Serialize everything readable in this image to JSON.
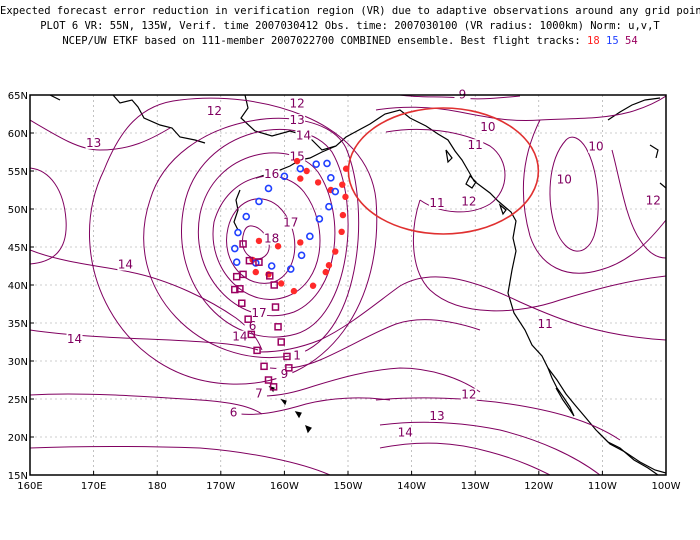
{
  "header": {
    "line1": "Expected forecast error reduction in verification region (VR) due to adaptive observations around any grid point.",
    "line2": "PLOT 6 VR: 55N, 135W, Verif. time 2007030412 Obs. time: 2007030100 (VR radius: 1000km) Norm: u,v,T",
    "line3_prefix": "NCEP/UW ETKF based on 111-member 2007022700 COMBINED ensemble.  Best flight tracks:",
    "track1": "18",
    "track2": "15",
    "track3": "54"
  },
  "map": {
    "lat_labels": [
      "65N",
      "60N",
      "55N",
      "50N",
      "45N",
      "40N",
      "35N",
      "30N",
      "25N",
      "20N",
      "15N"
    ],
    "lon_labels": [
      "160E",
      "170E",
      "180",
      "170W",
      "160W",
      "150W",
      "140W",
      "130W",
      "120W",
      "110W",
      "100W"
    ],
    "contour_labels": [
      {
        "text": "12",
        "lon": -171,
        "lat": 62.5
      },
      {
        "text": "12",
        "lon": -158,
        "lat": 63.5
      },
      {
        "text": "13",
        "lon": -158,
        "lat": 61.3
      },
      {
        "text": "14",
        "lon": -157,
        "lat": 59.3
      },
      {
        "text": "13",
        "lon": -190,
        "lat": 58.3
      },
      {
        "text": "15",
        "lon": -158,
        "lat": 56.5
      },
      {
        "text": "16",
        "lon": -162,
        "lat": 54.2
      },
      {
        "text": "17",
        "lon": -159,
        "lat": 47.8
      },
      {
        "text": "18",
        "lon": -162,
        "lat": 45.7
      },
      {
        "text": "14",
        "lon": -185,
        "lat": 42.3
      },
      {
        "text": "17",
        "lon": -164,
        "lat": 35.9
      },
      {
        "text": "6",
        "lon": -165,
        "lat": 34.2
      },
      {
        "text": "14",
        "lon": -167,
        "lat": 32.8
      },
      {
        "text": "1",
        "lon": -158,
        "lat": 30.3
      },
      {
        "text": "14",
        "lon": -193,
        "lat": 32.5
      },
      {
        "text": "9",
        "lon": -160,
        "lat": 27.9
      },
      {
        "text": "7",
        "lon": -164,
        "lat": 25.3
      },
      {
        "text": "6",
        "lon": -168,
        "lat": 22.8
      },
      {
        "text": "9",
        "lon": -132,
        "lat": 64.7
      },
      {
        "text": "10",
        "lon": -128,
        "lat": 60.4
      },
      {
        "text": "11",
        "lon": -130,
        "lat": 58.0
      },
      {
        "text": "12",
        "lon": -131,
        "lat": 50.6
      },
      {
        "text": "11",
        "lon": -136,
        "lat": 50.4
      },
      {
        "text": "10",
        "lon": -111,
        "lat": 57.8
      },
      {
        "text": "10",
        "lon": -116,
        "lat": 53.5
      },
      {
        "text": "12",
        "lon": -102,
        "lat": 50.7
      },
      {
        "text": "11",
        "lon": -119,
        "lat": 34.5
      },
      {
        "text": "12",
        "lon": -131,
        "lat": 25.2
      },
      {
        "text": "13",
        "lon": -136,
        "lat": 22.4
      },
      {
        "text": "14",
        "lon": -141,
        "lat": 20.2
      }
    ],
    "verification_circle": {
      "lon": -135,
      "lat": 55
    },
    "track_18": [
      [
        -150.3,
        55.3
      ],
      [
        -150.9,
        53.2
      ],
      [
        -150.4,
        51.6
      ],
      [
        -150.8,
        49.2
      ],
      [
        -151,
        47.0
      ],
      [
        -152,
        44.4
      ],
      [
        -153.5,
        41.7
      ],
      [
        -155.5,
        39.9
      ],
      [
        -158.5,
        39.2
      ],
      [
        -160.5,
        40.2
      ],
      [
        -162.5,
        41.4
      ],
      [
        -164.5,
        41.7
      ],
      [
        -165,
        43.3
      ],
      [
        -164,
        45.8
      ],
      [
        -161,
        45.1
      ],
      [
        -157.5,
        45.6
      ],
      [
        -153,
        42.6
      ],
      [
        -152.7,
        52.5
      ],
      [
        -154.7,
        53.5
      ],
      [
        -157.5,
        54.0
      ],
      [
        -156.5,
        55.0
      ],
      [
        -158.0,
        56.3
      ]
    ],
    "track_15": [
      [
        -153.3,
        56.0
      ],
      [
        -152.7,
        54.1
      ],
      [
        -152.0,
        52.3
      ],
      [
        -153.0,
        50.3
      ],
      [
        -154.5,
        48.7
      ],
      [
        -156.0,
        46.4
      ],
      [
        -157.3,
        43.9
      ],
      [
        -159.0,
        42.1
      ],
      [
        -162.0,
        42.5
      ],
      [
        -164.5,
        42.9
      ],
      [
        -167.5,
        43.0
      ],
      [
        -167.8,
        44.8
      ],
      [
        -167.3,
        46.9
      ],
      [
        -166.0,
        49.0
      ],
      [
        -164.0,
        51.0
      ],
      [
        -162.5,
        52.7
      ],
      [
        -160.0,
        54.3
      ],
      [
        -157.5,
        55.3
      ],
      [
        -155.0,
        55.9
      ]
    ],
    "track_54": [
      [
        -166.5,
        45.4
      ],
      [
        -165.5,
        43.2
      ],
      [
        -167.5,
        41.1
      ],
      [
        -167.8,
        39.4
      ],
      [
        -166.7,
        37.6
      ],
      [
        -165.7,
        35.5
      ],
      [
        -165.2,
        33.5
      ],
      [
        -164.3,
        31.4
      ],
      [
        -163.2,
        29.3
      ],
      [
        -162.5,
        27.5
      ],
      [
        -161.7,
        26.6
      ],
      [
        -159.3,
        29.1
      ],
      [
        -159.6,
        30.6
      ],
      [
        -160.5,
        32.5
      ],
      [
        -161.0,
        34.5
      ],
      [
        -161.4,
        37.1
      ],
      [
        -161.6,
        40.0
      ],
      [
        -162.3,
        41.2
      ],
      [
        -164.0,
        43.0
      ],
      [
        -166.5,
        41.4
      ],
      [
        -167.0,
        39.5
      ]
    ]
  }
}
